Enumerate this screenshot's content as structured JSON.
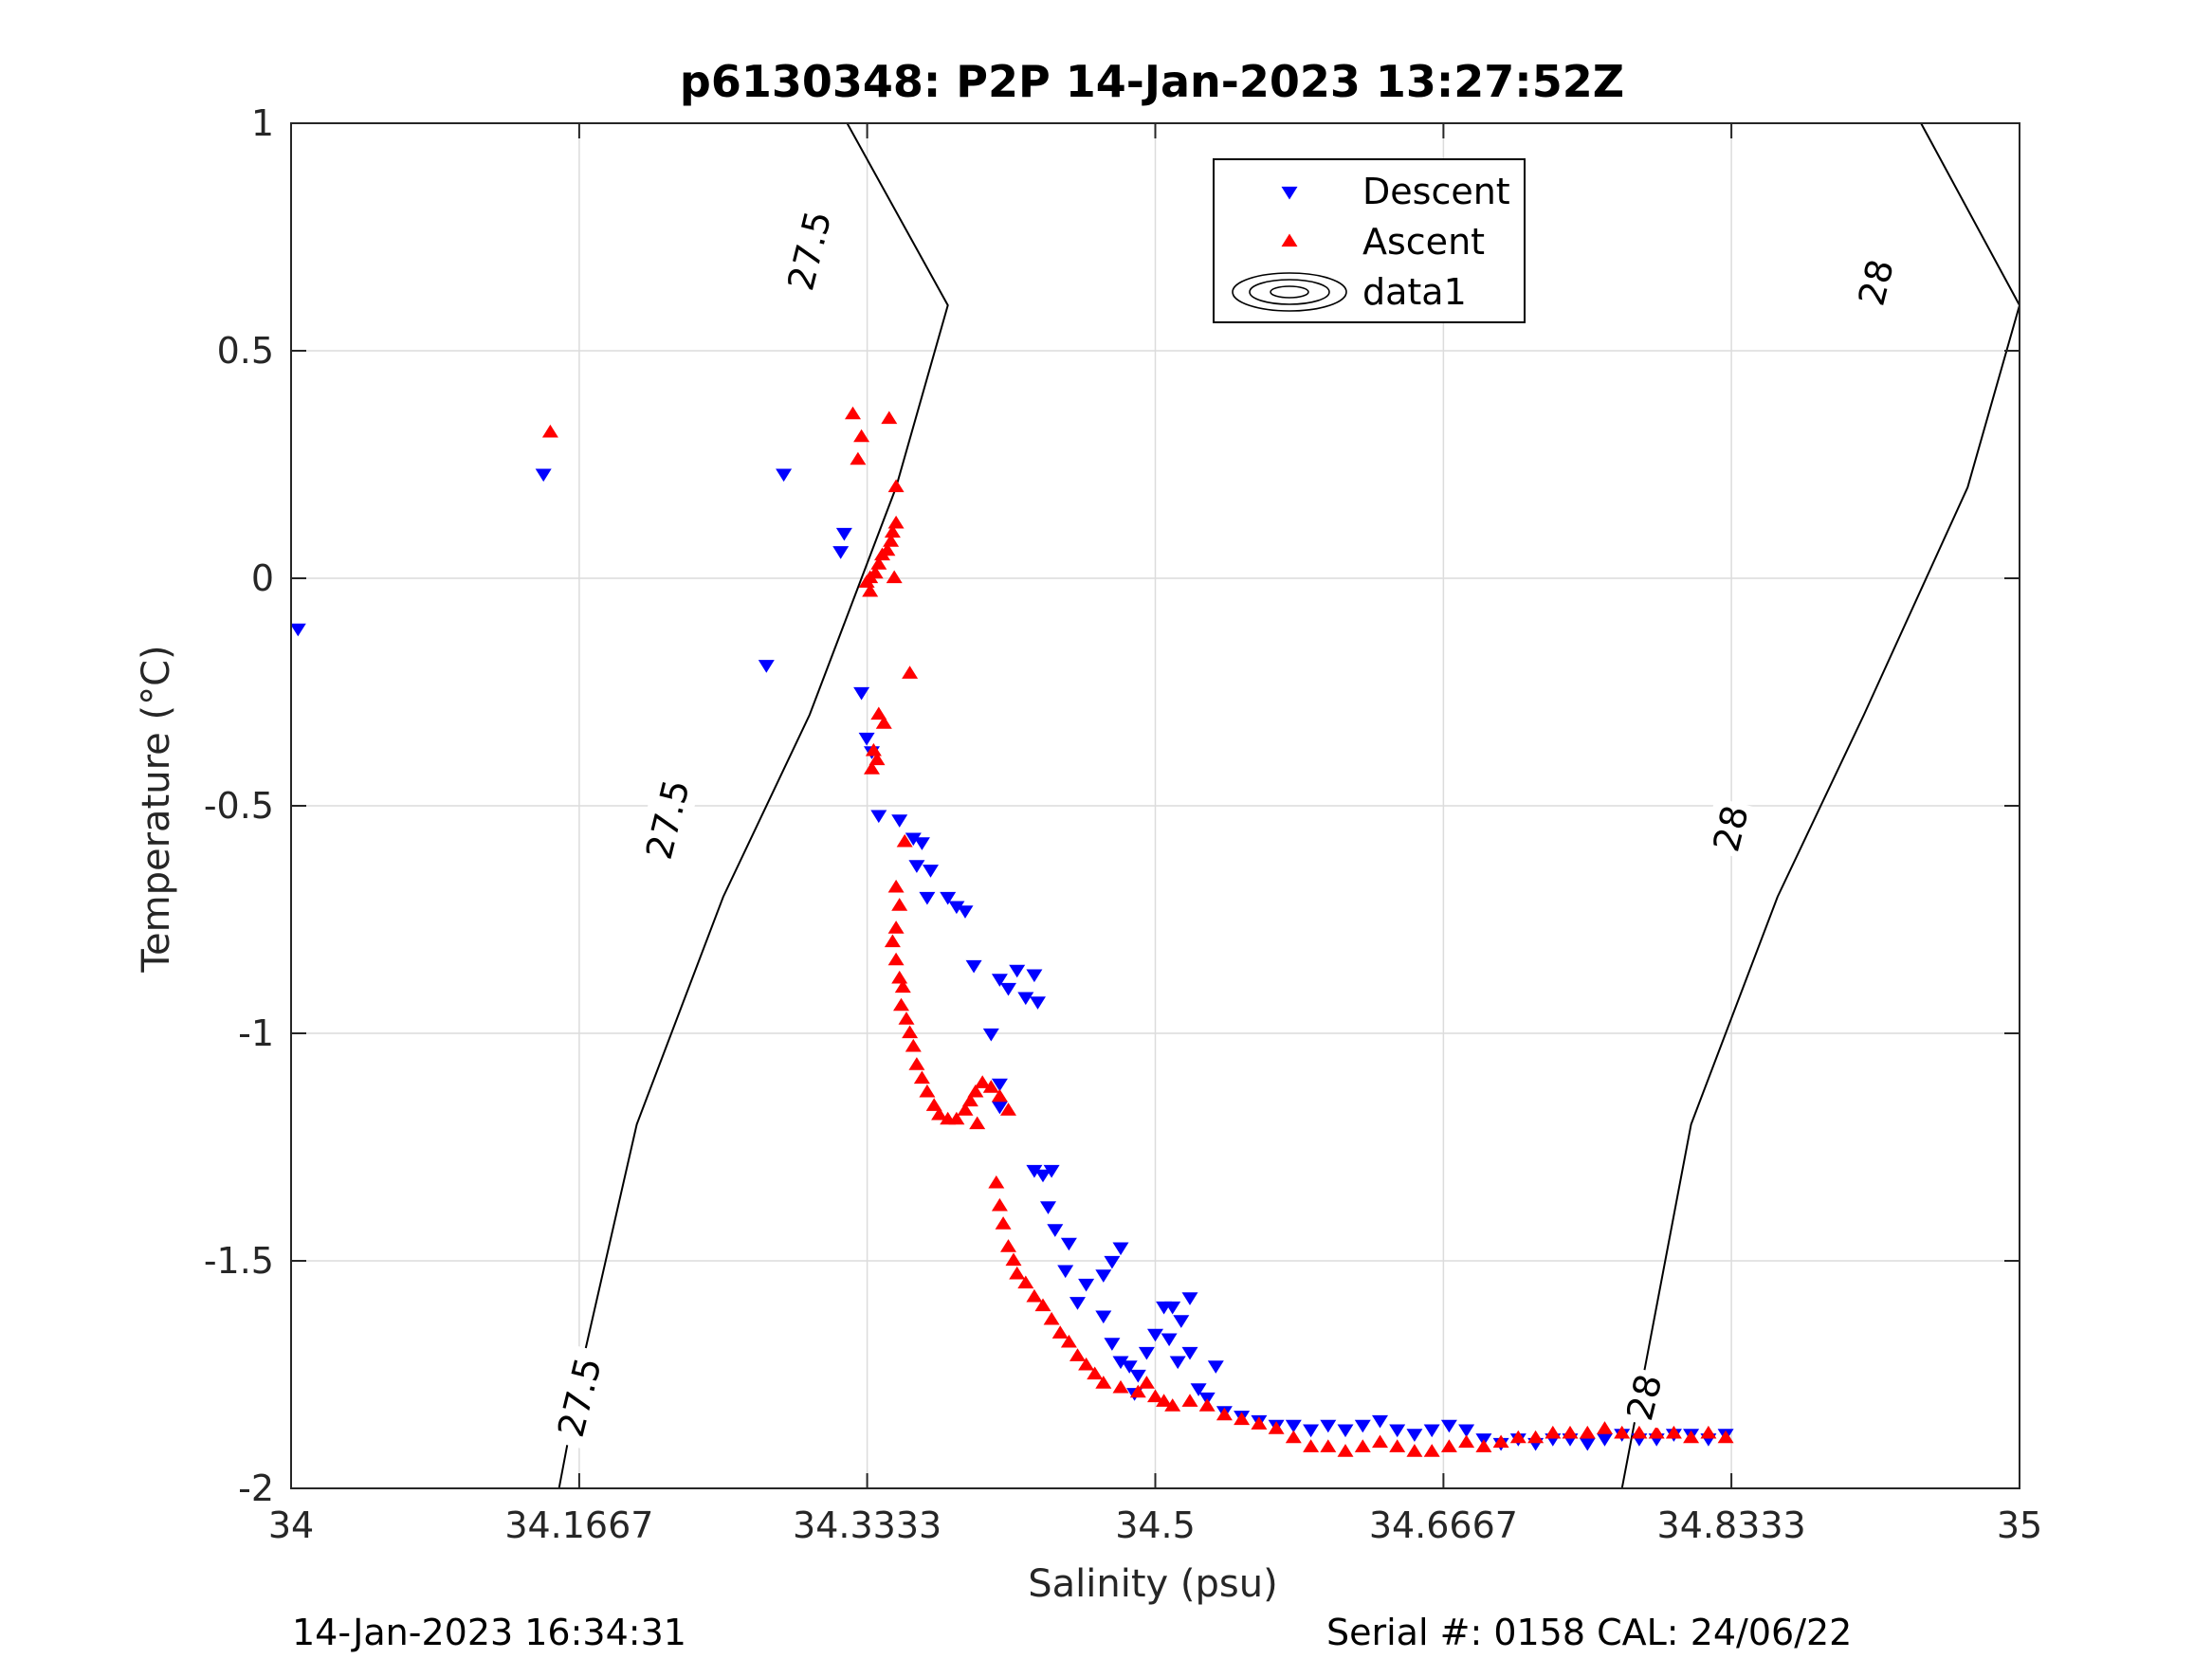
{
  "colors": {
    "descent": "#0000ff",
    "ascent": "#ff0000",
    "contour": "#000000",
    "grid": "#dcdcdc",
    "axis": "#262626"
  },
  "footer": {
    "left": "14-Jan-2023 16:34:31",
    "right": "Serial #: 0158  CAL: 24/06/22"
  },
  "chart_data": {
    "type": "scatter",
    "title": "p6130348: P2P 14-Jan-2023 13:27:52Z",
    "xlabel": "Salinity (psu)",
    "ylabel": "Temperature (°C)",
    "xlim": [
      34,
      35
    ],
    "ylim": [
      -2,
      1
    ],
    "x_ticks": [
      "34",
      "34.1667",
      "34.3333",
      "34.5",
      "34.6667",
      "34.8333",
      "35"
    ],
    "y_ticks": [
      "1",
      "0.5",
      "0",
      "-0.5",
      "-1",
      "-1.5",
      "-2"
    ],
    "grid": true,
    "legend": {
      "position": "top-right",
      "entries": [
        "Descent",
        "Ascent",
        "data1"
      ]
    },
    "contours": [
      {
        "level": "27.5",
        "points": [
          [
            34.155,
            -2.0
          ],
          [
            34.17,
            -1.7
          ],
          [
            34.2,
            -1.2
          ],
          [
            34.25,
            -0.7
          ],
          [
            34.3,
            -0.3
          ],
          [
            34.35,
            0.2
          ],
          [
            34.38,
            0.6
          ],
          [
            34.3217,
            1.0
          ]
        ],
        "labels": [
          [
            34.167,
            -1.8
          ],
          [
            34.218,
            -0.53
          ],
          [
            34.3,
            0.72
          ]
        ]
      },
      {
        "level": "28",
        "points": [
          [
            34.77,
            -2.0
          ],
          [
            34.785,
            -1.7
          ],
          [
            34.81,
            -1.2
          ],
          [
            34.86,
            -0.7
          ],
          [
            34.91,
            -0.3
          ],
          [
            34.97,
            0.2
          ],
          [
            35.0,
            0.6
          ],
          [
            34.943,
            1.0
          ]
        ],
        "labels": [
          [
            34.783,
            -1.8
          ],
          [
            34.833,
            -0.55
          ],
          [
            34.917,
            0.65
          ]
        ]
      }
    ],
    "series": [
      {
        "name": "Descent",
        "marker": "triangle-down",
        "color": "#0000ff",
        "points": [
          [
            34.004,
            -0.11
          ],
          [
            34.146,
            0.23
          ],
          [
            34.285,
            0.23
          ],
          [
            34.275,
            -0.19
          ],
          [
            34.32,
            0.1
          ],
          [
            34.318,
            0.06
          ],
          [
            34.33,
            -0.25
          ],
          [
            34.333,
            -0.35
          ],
          [
            34.336,
            -0.38
          ],
          [
            34.34,
            -0.52
          ],
          [
            34.352,
            -0.53
          ],
          [
            34.36,
            -0.57
          ],
          [
            34.365,
            -0.58
          ],
          [
            34.362,
            -0.63
          ],
          [
            34.37,
            -0.64
          ],
          [
            34.368,
            -0.7
          ],
          [
            34.38,
            -0.7
          ],
          [
            34.385,
            -0.72
          ],
          [
            34.39,
            -0.73
          ],
          [
            34.395,
            -0.85
          ],
          [
            34.41,
            -0.88
          ],
          [
            34.415,
            -0.9
          ],
          [
            34.405,
            -1.0
          ],
          [
            34.42,
            -0.86
          ],
          [
            34.43,
            -0.87
          ],
          [
            34.425,
            -0.92
          ],
          [
            34.432,
            -0.93
          ],
          [
            34.41,
            -1.11
          ],
          [
            34.41,
            -1.16
          ],
          [
            34.43,
            -1.3
          ],
          [
            34.435,
            -1.31
          ],
          [
            34.44,
            -1.3
          ],
          [
            34.438,
            -1.38
          ],
          [
            34.442,
            -1.43
          ],
          [
            34.45,
            -1.46
          ],
          [
            34.448,
            -1.52
          ],
          [
            34.46,
            -1.55
          ],
          [
            34.455,
            -1.59
          ],
          [
            34.47,
            -1.62
          ],
          [
            34.47,
            -1.53
          ],
          [
            34.475,
            -1.5
          ],
          [
            34.48,
            -1.47
          ],
          [
            34.475,
            -1.68
          ],
          [
            34.48,
            -1.72
          ],
          [
            34.485,
            -1.73
          ],
          [
            34.49,
            -1.75
          ],
          [
            34.488,
            -1.79
          ],
          [
            34.495,
            -1.7
          ],
          [
            34.5,
            -1.66
          ],
          [
            34.505,
            -1.6
          ],
          [
            34.51,
            -1.6
          ],
          [
            34.515,
            -1.63
          ],
          [
            34.52,
            -1.58
          ],
          [
            34.508,
            -1.67
          ],
          [
            34.513,
            -1.72
          ],
          [
            34.52,
            -1.7
          ],
          [
            34.525,
            -1.78
          ],
          [
            34.53,
            -1.8
          ],
          [
            34.535,
            -1.73
          ],
          [
            34.54,
            -1.83
          ],
          [
            34.55,
            -1.84
          ],
          [
            34.56,
            -1.85
          ],
          [
            34.57,
            -1.86
          ],
          [
            34.58,
            -1.86
          ],
          [
            34.59,
            -1.87
          ],
          [
            34.6,
            -1.86
          ],
          [
            34.61,
            -1.87
          ],
          [
            34.62,
            -1.86
          ],
          [
            34.63,
            -1.85
          ],
          [
            34.64,
            -1.87
          ],
          [
            34.65,
            -1.88
          ],
          [
            34.66,
            -1.87
          ],
          [
            34.67,
            -1.86
          ],
          [
            34.68,
            -1.87
          ],
          [
            34.69,
            -1.89
          ],
          [
            34.7,
            -1.9
          ],
          [
            34.71,
            -1.89
          ],
          [
            34.72,
            -1.9
          ],
          [
            34.73,
            -1.89
          ],
          [
            34.74,
            -1.89
          ],
          [
            34.75,
            -1.9
          ],
          [
            34.76,
            -1.89
          ],
          [
            34.77,
            -1.88
          ],
          [
            34.78,
            -1.89
          ],
          [
            34.79,
            -1.89
          ],
          [
            34.8,
            -1.88
          ],
          [
            34.81,
            -1.88
          ],
          [
            34.82,
            -1.89
          ],
          [
            34.83,
            -1.88
          ]
        ]
      },
      {
        "name": "Ascent",
        "marker": "triangle-up",
        "color": "#ff0000",
        "points": [
          [
            34.15,
            0.32
          ],
          [
            34.325,
            0.36
          ],
          [
            34.33,
            0.31
          ],
          [
            34.328,
            0.26
          ],
          [
            34.346,
            0.35
          ],
          [
            34.35,
            0.2
          ],
          [
            34.333,
            -0.01
          ],
          [
            34.335,
            0.0
          ],
          [
            34.338,
            0.01
          ],
          [
            34.34,
            0.03
          ],
          [
            34.342,
            0.05
          ],
          [
            34.345,
            0.06
          ],
          [
            34.347,
            0.08
          ],
          [
            34.348,
            0.1
          ],
          [
            34.35,
            0.12
          ],
          [
            34.349,
            0.0
          ],
          [
            34.335,
            -0.03
          ],
          [
            34.358,
            -0.21
          ],
          [
            34.34,
            -0.3
          ],
          [
            34.343,
            -0.32
          ],
          [
            34.339,
            -0.4
          ],
          [
            34.336,
            -0.42
          ],
          [
            34.337,
            -0.38
          ],
          [
            34.35,
            -0.68
          ],
          [
            34.352,
            -0.72
          ],
          [
            34.35,
            -0.77
          ],
          [
            34.348,
            -0.8
          ],
          [
            34.35,
            -0.84
          ],
          [
            34.352,
            -0.88
          ],
          [
            34.354,
            -0.9
          ],
          [
            34.353,
            -0.94
          ],
          [
            34.356,
            -0.97
          ],
          [
            34.358,
            -1.0
          ],
          [
            34.36,
            -1.03
          ],
          [
            34.362,
            -1.07
          ],
          [
            34.365,
            -1.1
          ],
          [
            34.368,
            -1.13
          ],
          [
            34.372,
            -1.16
          ],
          [
            34.375,
            -1.18
          ],
          [
            34.38,
            -1.19
          ],
          [
            34.385,
            -1.19
          ],
          [
            34.39,
            -1.17
          ],
          [
            34.393,
            -1.15
          ],
          [
            34.396,
            -1.13
          ],
          [
            34.4,
            -1.11
          ],
          [
            34.405,
            -1.12
          ],
          [
            34.41,
            -1.14
          ],
          [
            34.415,
            -1.17
          ],
          [
            34.397,
            -1.2
          ],
          [
            34.355,
            -0.58
          ],
          [
            34.408,
            -1.33
          ],
          [
            34.41,
            -1.38
          ],
          [
            34.412,
            -1.42
          ],
          [
            34.415,
            -1.47
          ],
          [
            34.418,
            -1.5
          ],
          [
            34.42,
            -1.53
          ],
          [
            34.425,
            -1.55
          ],
          [
            34.43,
            -1.58
          ],
          [
            34.435,
            -1.6
          ],
          [
            34.44,
            -1.63
          ],
          [
            34.445,
            -1.66
          ],
          [
            34.45,
            -1.68
          ],
          [
            34.455,
            -1.71
          ],
          [
            34.46,
            -1.73
          ],
          [
            34.465,
            -1.75
          ],
          [
            34.47,
            -1.77
          ],
          [
            34.48,
            -1.78
          ],
          [
            34.49,
            -1.79
          ],
          [
            34.495,
            -1.77
          ],
          [
            34.5,
            -1.8
          ],
          [
            34.505,
            -1.81
          ],
          [
            34.51,
            -1.82
          ],
          [
            34.52,
            -1.81
          ],
          [
            34.53,
            -1.82
          ],
          [
            34.54,
            -1.84
          ],
          [
            34.55,
            -1.85
          ],
          [
            34.56,
            -1.86
          ],
          [
            34.57,
            -1.87
          ],
          [
            34.58,
            -1.89
          ],
          [
            34.59,
            -1.91
          ],
          [
            34.6,
            -1.91
          ],
          [
            34.61,
            -1.92
          ],
          [
            34.62,
            -1.91
          ],
          [
            34.63,
            -1.9
          ],
          [
            34.64,
            -1.91
          ],
          [
            34.65,
            -1.92
          ],
          [
            34.66,
            -1.92
          ],
          [
            34.67,
            -1.91
          ],
          [
            34.68,
            -1.9
          ],
          [
            34.69,
            -1.91
          ],
          [
            34.7,
            -1.9
          ],
          [
            34.71,
            -1.89
          ],
          [
            34.72,
            -1.89
          ],
          [
            34.73,
            -1.88
          ],
          [
            34.74,
            -1.88
          ],
          [
            34.75,
            -1.88
          ],
          [
            34.76,
            -1.87
          ],
          [
            34.77,
            -1.88
          ],
          [
            34.78,
            -1.88
          ],
          [
            34.79,
            -1.88
          ],
          [
            34.8,
            -1.88
          ],
          [
            34.81,
            -1.89
          ],
          [
            34.82,
            -1.88
          ],
          [
            34.83,
            -1.89
          ]
        ]
      }
    ]
  }
}
